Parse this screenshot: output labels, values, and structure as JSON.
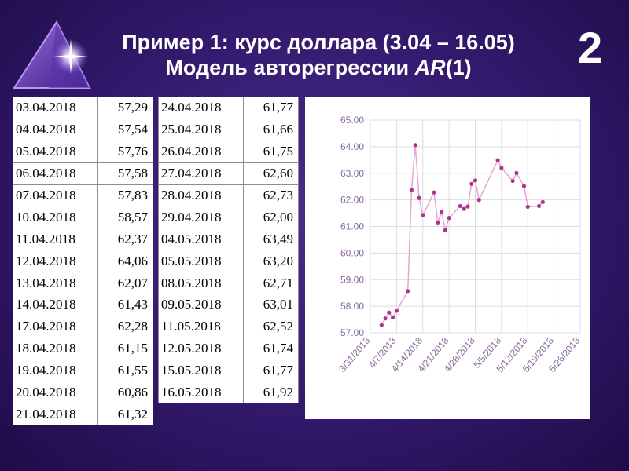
{
  "title": {
    "line1": "Пример 1: курс доллара (3.04 – 16.05)",
    "line2_prefix": "Модель авторегрессии ",
    "line2_model": "AR",
    "line2_suffix": "(1)"
  },
  "slide_number": "2",
  "colors": {
    "background": "#32196c",
    "series": "#b0328e",
    "grid": "#dddddd",
    "axis_text": "#8a6a9a"
  },
  "table_left": [
    {
      "date": "03.04.2018",
      "value": "57,29"
    },
    {
      "date": "04.04.2018",
      "value": "57,54"
    },
    {
      "date": "05.04.2018",
      "value": "57,76"
    },
    {
      "date": "06.04.2018",
      "value": "57,58"
    },
    {
      "date": "07.04.2018",
      "value": "57,83"
    },
    {
      "date": "10.04.2018",
      "value": "58,57"
    },
    {
      "date": "11.04.2018",
      "value": "62,37"
    },
    {
      "date": "12.04.2018",
      "value": "64,06"
    },
    {
      "date": "13.04.2018",
      "value": "62,07"
    },
    {
      "date": "14.04.2018",
      "value": "61,43"
    },
    {
      "date": "17.04.2018",
      "value": "62,28"
    },
    {
      "date": "18.04.2018",
      "value": "61,15"
    },
    {
      "date": "19.04.2018",
      "value": "61,55"
    },
    {
      "date": "20.04.2018",
      "value": "60,86"
    },
    {
      "date": "21.04.2018",
      "value": "61,32"
    }
  ],
  "table_right": [
    {
      "date": "24.04.2018",
      "value": "61,77"
    },
    {
      "date": "25.04.2018",
      "value": "61,66"
    },
    {
      "date": "26.04.2018",
      "value": "61,75"
    },
    {
      "date": "27.04.2018",
      "value": "62,60"
    },
    {
      "date": "28.04.2018",
      "value": "62,73"
    },
    {
      "date": "29.04.2018",
      "value": "62,00"
    },
    {
      "date": "04.05.2018",
      "value": "63,49"
    },
    {
      "date": "05.05.2018",
      "value": "63,20"
    },
    {
      "date": "08.05.2018",
      "value": "62,71"
    },
    {
      "date": "09.05.2018",
      "value": "63,01"
    },
    {
      "date": "11.05.2018",
      "value": "62,52"
    },
    {
      "date": "12.05.2018",
      "value": "61,74"
    },
    {
      "date": "15.05.2018",
      "value": "61,77"
    },
    {
      "date": "16.05.2018",
      "value": "61,92"
    }
  ],
  "chart_data": {
    "type": "line",
    "title": "",
    "xlabel": "",
    "ylabel": "",
    "ylim": [
      57.0,
      65.0
    ],
    "xlim": [
      "2018-03-31",
      "2018-05-26"
    ],
    "yticks": [
      "65.00",
      "64.00",
      "63.00",
      "62.00",
      "61.00",
      "60.00",
      "59.00",
      "58.00",
      "57.00"
    ],
    "xticks": [
      {
        "date": "2018-03-31",
        "label": "3/31/2018"
      },
      {
        "date": "2018-04-07",
        "label": "4/7/2018"
      },
      {
        "date": "2018-04-14",
        "label": "4/14/2018"
      },
      {
        "date": "2018-04-21",
        "label": "4/21/2018"
      },
      {
        "date": "2018-04-28",
        "label": "4/28/2018"
      },
      {
        "date": "2018-05-05",
        "label": "5/5/2018"
      },
      {
        "date": "2018-05-12",
        "label": "5/12/2018"
      },
      {
        "date": "2018-05-19",
        "label": "5/19/2018"
      },
      {
        "date": "2018-05-26",
        "label": "5/26/2018"
      }
    ],
    "grid": true,
    "legend": "none",
    "series": [
      {
        "x": [
          "2018-04-03",
          "2018-04-04",
          "2018-04-05",
          "2018-04-06",
          "2018-04-07",
          "2018-04-10",
          "2018-04-11",
          "2018-04-12",
          "2018-04-13",
          "2018-04-14",
          "2018-04-17",
          "2018-04-18",
          "2018-04-19",
          "2018-04-20",
          "2018-04-21",
          "2018-04-24",
          "2018-04-25",
          "2018-04-26",
          "2018-04-27",
          "2018-04-28",
          "2018-04-29",
          "2018-05-04",
          "2018-05-05",
          "2018-05-08",
          "2018-05-09",
          "2018-05-11",
          "2018-05-12",
          "2018-05-15",
          "2018-05-16"
        ],
        "y": [
          57.29,
          57.54,
          57.76,
          57.58,
          57.83,
          58.57,
          62.37,
          64.06,
          62.07,
          61.43,
          62.28,
          61.15,
          61.55,
          60.86,
          61.32,
          61.77,
          61.66,
          61.75,
          62.6,
          62.73,
          62.0,
          63.49,
          63.2,
          62.71,
          63.01,
          62.52,
          61.74,
          61.77,
          61.92
        ]
      }
    ]
  }
}
